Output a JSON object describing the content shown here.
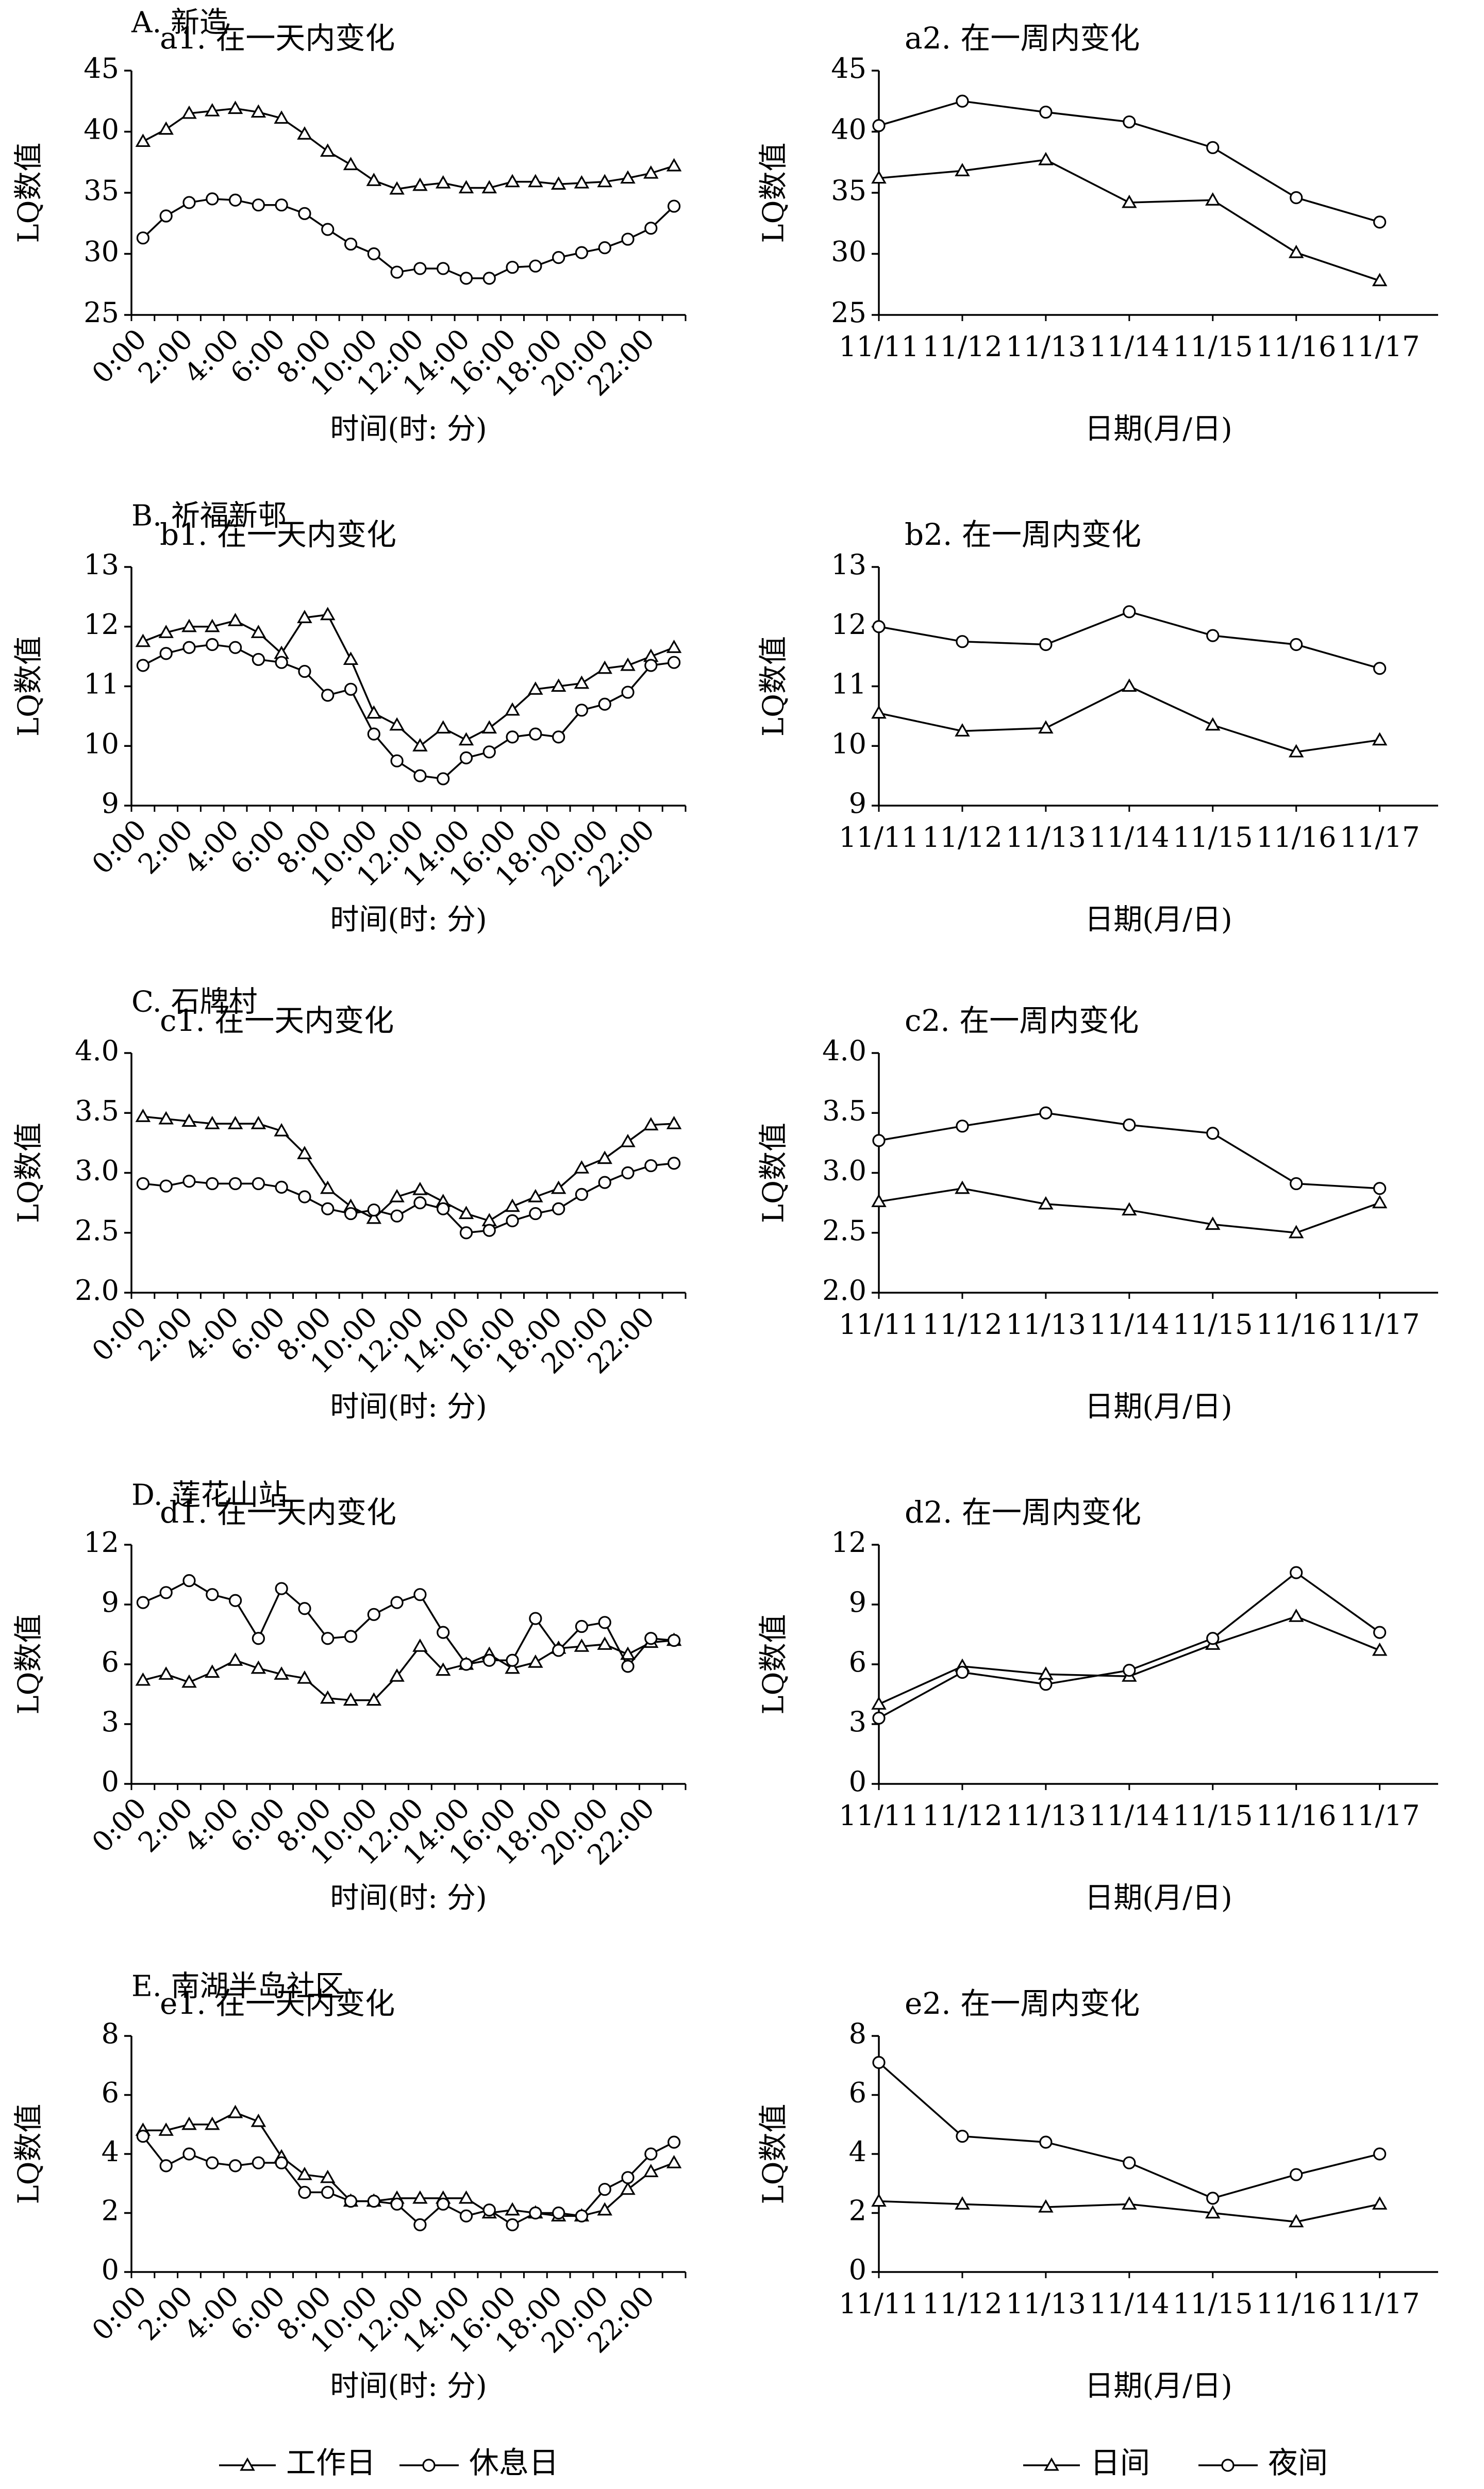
{
  "legend_day": {
    "workday": "工作日",
    "restday": "休息日"
  },
  "legend_week": {
    "daytime": "日间",
    "night": "夜间"
  },
  "chart_data": [
    {
      "id": "a1",
      "panel_label": "A. 新造",
      "title": "a1. 在一天内变化",
      "type": "line",
      "xlabel": "时间(时: 分)",
      "ylabel": "LQ数值",
      "x_ticks": [
        "0:00",
        "2:00",
        "4:00",
        "6:00",
        "8:00",
        "10:00",
        "12:00",
        "14:00",
        "16:00",
        "18:00",
        "20:00",
        "22:00"
      ],
      "ylim": [
        25,
        45
      ],
      "y_ticks": [
        25,
        30,
        35,
        40,
        45
      ],
      "series": [
        {
          "name": "工作日",
          "marker": "triangle",
          "values": [
            39.2,
            40.2,
            41.5,
            41.7,
            41.9,
            41.6,
            41.1,
            39.8,
            38.4,
            37.3,
            36.0,
            35.3,
            35.6,
            35.8,
            35.4,
            35.4,
            35.9,
            35.9,
            35.7,
            35.8,
            35.9,
            36.2,
            36.6,
            37.2
          ]
        },
        {
          "name": "休息日",
          "marker": "circle",
          "values": [
            31.3,
            33.1,
            34.2,
            34.5,
            34.4,
            34.0,
            34.0,
            33.3,
            32.0,
            30.8,
            30.0,
            28.5,
            28.8,
            28.8,
            28.0,
            28.0,
            28.9,
            29.0,
            29.7,
            30.1,
            30.5,
            31.2,
            32.1,
            33.9
          ]
        }
      ]
    },
    {
      "id": "a2",
      "title": "a2. 在一周内变化",
      "type": "line",
      "xlabel": "日期(月/日)",
      "ylabel": "LQ数值",
      "categories": [
        "11/11",
        "11/12",
        "11/13",
        "11/14",
        "11/15",
        "11/16",
        "11/17"
      ],
      "ylim": [
        25,
        45
      ],
      "y_ticks": [
        25,
        30,
        35,
        40,
        45
      ],
      "series": [
        {
          "name": "日间",
          "marker": "triangle",
          "values": [
            36.2,
            36.8,
            37.7,
            34.2,
            34.4,
            30.1,
            27.8
          ]
        },
        {
          "name": "夜间",
          "marker": "circle",
          "values": [
            40.5,
            42.5,
            41.6,
            40.8,
            38.7,
            34.6,
            32.6
          ]
        }
      ]
    },
    {
      "id": "b1",
      "panel_label": "B. 祈福新邨",
      "title": "b1. 在一天内变化",
      "type": "line",
      "xlabel": "时间(时: 分)",
      "ylabel": "LQ数值",
      "x_ticks": [
        "0:00",
        "2:00",
        "4:00",
        "6:00",
        "8:00",
        "10:00",
        "12:00",
        "14:00",
        "16:00",
        "18:00",
        "20:00",
        "22:00"
      ],
      "ylim": [
        9,
        13
      ],
      "y_ticks": [
        9,
        10,
        11,
        12,
        13
      ],
      "series": [
        {
          "name": "工作日",
          "marker": "triangle",
          "values": [
            11.75,
            11.9,
            12.0,
            12.0,
            12.1,
            11.9,
            11.55,
            12.15,
            12.2,
            11.45,
            10.55,
            10.35,
            10.0,
            10.3,
            10.1,
            10.3,
            10.6,
            10.95,
            11.0,
            11.05,
            11.3,
            11.35,
            11.5,
            11.65
          ]
        },
        {
          "name": "休息日",
          "marker": "circle",
          "values": [
            11.35,
            11.55,
            11.65,
            11.7,
            11.65,
            11.45,
            11.4,
            11.25,
            10.85,
            10.95,
            10.2,
            9.75,
            9.5,
            9.45,
            9.8,
            9.9,
            10.15,
            10.2,
            10.15,
            10.6,
            10.7,
            10.9,
            11.35,
            11.4
          ]
        }
      ]
    },
    {
      "id": "b2",
      "title": "b2. 在一周内变化",
      "type": "line",
      "xlabel": "日期(月/日)",
      "ylabel": "LQ数值",
      "categories": [
        "11/11",
        "11/12",
        "11/13",
        "11/14",
        "11/15",
        "11/16",
        "11/17"
      ],
      "ylim": [
        9,
        13
      ],
      "y_ticks": [
        9,
        10,
        11,
        12,
        13
      ],
      "series": [
        {
          "name": "日间",
          "marker": "triangle",
          "values": [
            10.55,
            10.25,
            10.3,
            11.0,
            10.35,
            9.9,
            10.1
          ]
        },
        {
          "name": "夜间",
          "marker": "circle",
          "values": [
            12.0,
            11.75,
            11.7,
            12.25,
            11.85,
            11.7,
            11.3
          ]
        }
      ]
    },
    {
      "id": "c1",
      "panel_label": "C. 石牌村",
      "title": "c1. 在一天内变化",
      "type": "line",
      "xlabel": "时间(时: 分)",
      "ylabel": "LQ数值",
      "x_ticks": [
        "0:00",
        "2:00",
        "4:00",
        "6:00",
        "8:00",
        "10:00",
        "12:00",
        "14:00",
        "16:00",
        "18:00",
        "20:00",
        "22:00"
      ],
      "ylim": [
        2.0,
        4.0
      ],
      "y_ticks": [
        "2.0",
        "2.5",
        "3.0",
        "3.5",
        "4.0"
      ],
      "series": [
        {
          "name": "工作日",
          "marker": "triangle",
          "values": [
            3.47,
            3.45,
            3.43,
            3.41,
            3.41,
            3.41,
            3.35,
            3.16,
            2.87,
            2.72,
            2.62,
            2.8,
            2.86,
            2.76,
            2.66,
            2.6,
            2.72,
            2.8,
            2.87,
            3.04,
            3.12,
            3.26,
            3.4,
            3.41
          ]
        },
        {
          "name": "休息日",
          "marker": "circle",
          "values": [
            2.91,
            2.89,
            2.93,
            2.91,
            2.91,
            2.91,
            2.88,
            2.8,
            2.7,
            2.66,
            2.69,
            2.64,
            2.75,
            2.7,
            2.5,
            2.52,
            2.6,
            2.66,
            2.7,
            2.82,
            2.92,
            3.0,
            3.06,
            3.08
          ]
        }
      ]
    },
    {
      "id": "c2",
      "title": "c2. 在一周内变化",
      "type": "line",
      "xlabel": "日期(月/日)",
      "ylabel": "LQ数值",
      "categories": [
        "11/11",
        "11/12",
        "11/13",
        "11/14",
        "11/15",
        "11/16",
        "11/17"
      ],
      "ylim": [
        2.0,
        4.0
      ],
      "y_ticks": [
        "2.0",
        "2.5",
        "3.0",
        "3.5",
        "4.0"
      ],
      "series": [
        {
          "name": "日间",
          "marker": "triangle",
          "values": [
            2.76,
            2.87,
            2.74,
            2.69,
            2.57,
            2.5,
            2.75
          ]
        },
        {
          "name": "夜间",
          "marker": "circle",
          "values": [
            3.27,
            3.39,
            3.5,
            3.4,
            3.33,
            2.91,
            2.87
          ]
        }
      ]
    },
    {
      "id": "d1",
      "panel_label": "D. 莲花山站",
      "title": "d1. 在一天内变化",
      "type": "line",
      "xlabel": "时间(时: 分)",
      "ylabel": "LQ数值",
      "x_ticks": [
        "0:00",
        "2:00",
        "4:00",
        "6:00",
        "8:00",
        "10:00",
        "12:00",
        "14:00",
        "16:00",
        "18:00",
        "20:00",
        "22:00"
      ],
      "ylim": [
        0,
        12
      ],
      "y_ticks": [
        0,
        3,
        6,
        9,
        12
      ],
      "series": [
        {
          "name": "工作日",
          "marker": "triangle",
          "values": [
            5.2,
            5.5,
            5.1,
            5.6,
            6.2,
            5.8,
            5.5,
            5.3,
            4.3,
            4.2,
            4.2,
            5.4,
            6.9,
            5.7,
            6.0,
            6.5,
            5.8,
            6.1,
            6.8,
            6.9,
            7.0,
            6.5,
            7.1,
            7.2
          ]
        },
        {
          "name": "休息日",
          "marker": "circle",
          "values": [
            9.1,
            9.6,
            10.2,
            9.5,
            9.2,
            7.3,
            9.8,
            8.8,
            7.3,
            7.4,
            8.5,
            9.1,
            9.5,
            7.6,
            6.0,
            6.2,
            6.2,
            8.3,
            6.7,
            7.9,
            8.1,
            5.9,
            7.3,
            7.2
          ]
        }
      ]
    },
    {
      "id": "d2",
      "title": "d2. 在一周内变化",
      "type": "line",
      "xlabel": "日期(月/日)",
      "ylabel": "LQ数值",
      "categories": [
        "11/11",
        "11/12",
        "11/13",
        "11/14",
        "11/15",
        "11/16",
        "11/17"
      ],
      "ylim": [
        0,
        12
      ],
      "y_ticks": [
        0,
        3,
        6,
        9,
        12
      ],
      "series": [
        {
          "name": "日间",
          "marker": "triangle",
          "values": [
            4.0,
            5.9,
            5.5,
            5.4,
            7.0,
            8.4,
            6.7
          ]
        },
        {
          "name": "夜间",
          "marker": "circle",
          "values": [
            3.3,
            5.6,
            5.0,
            5.7,
            7.3,
            10.6,
            7.6
          ]
        }
      ]
    },
    {
      "id": "e1",
      "panel_label": "E. 南湖半岛社区",
      "title": "e1. 在一天内变化",
      "type": "line",
      "xlabel": "时间(时: 分)",
      "ylabel": "LQ数值",
      "x_ticks": [
        "0:00",
        "2:00",
        "4:00",
        "6:00",
        "8:00",
        "10:00",
        "12:00",
        "14:00",
        "16:00",
        "18:00",
        "20:00",
        "22:00"
      ],
      "ylim": [
        0,
        8
      ],
      "y_ticks": [
        0,
        2,
        4,
        6,
        8
      ],
      "series": [
        {
          "name": "工作日",
          "marker": "triangle",
          "values": [
            4.8,
            4.8,
            5.0,
            5.0,
            5.4,
            5.1,
            3.9,
            3.3,
            3.2,
            2.4,
            2.4,
            2.5,
            2.5,
            2.5,
            2.5,
            2.0,
            2.1,
            2.0,
            1.9,
            1.9,
            2.1,
            2.8,
            3.4,
            3.7
          ]
        },
        {
          "name": "休息日",
          "marker": "circle",
          "values": [
            4.6,
            3.6,
            4.0,
            3.7,
            3.6,
            3.7,
            3.7,
            2.7,
            2.7,
            2.4,
            2.4,
            2.3,
            1.6,
            2.3,
            1.9,
            2.1,
            1.6,
            2.0,
            2.0,
            1.9,
            2.8,
            3.2,
            4.0,
            4.4
          ]
        }
      ]
    },
    {
      "id": "e2",
      "title": "e2. 在一周内变化",
      "type": "line",
      "xlabel": "日期(月/日)",
      "ylabel": "LQ数值",
      "categories": [
        "11/11",
        "11/12",
        "11/13",
        "11/14",
        "11/15",
        "11/16",
        "11/17"
      ],
      "ylim": [
        0,
        8
      ],
      "y_ticks": [
        0,
        2,
        4,
        6,
        8
      ],
      "series": [
        {
          "name": "日间",
          "marker": "triangle",
          "values": [
            2.4,
            2.3,
            2.2,
            2.3,
            2.0,
            1.7,
            2.3
          ]
        },
        {
          "name": "夜间",
          "marker": "circle",
          "values": [
            7.1,
            4.6,
            4.4,
            3.7,
            2.5,
            3.3,
            4.0
          ]
        }
      ]
    }
  ]
}
